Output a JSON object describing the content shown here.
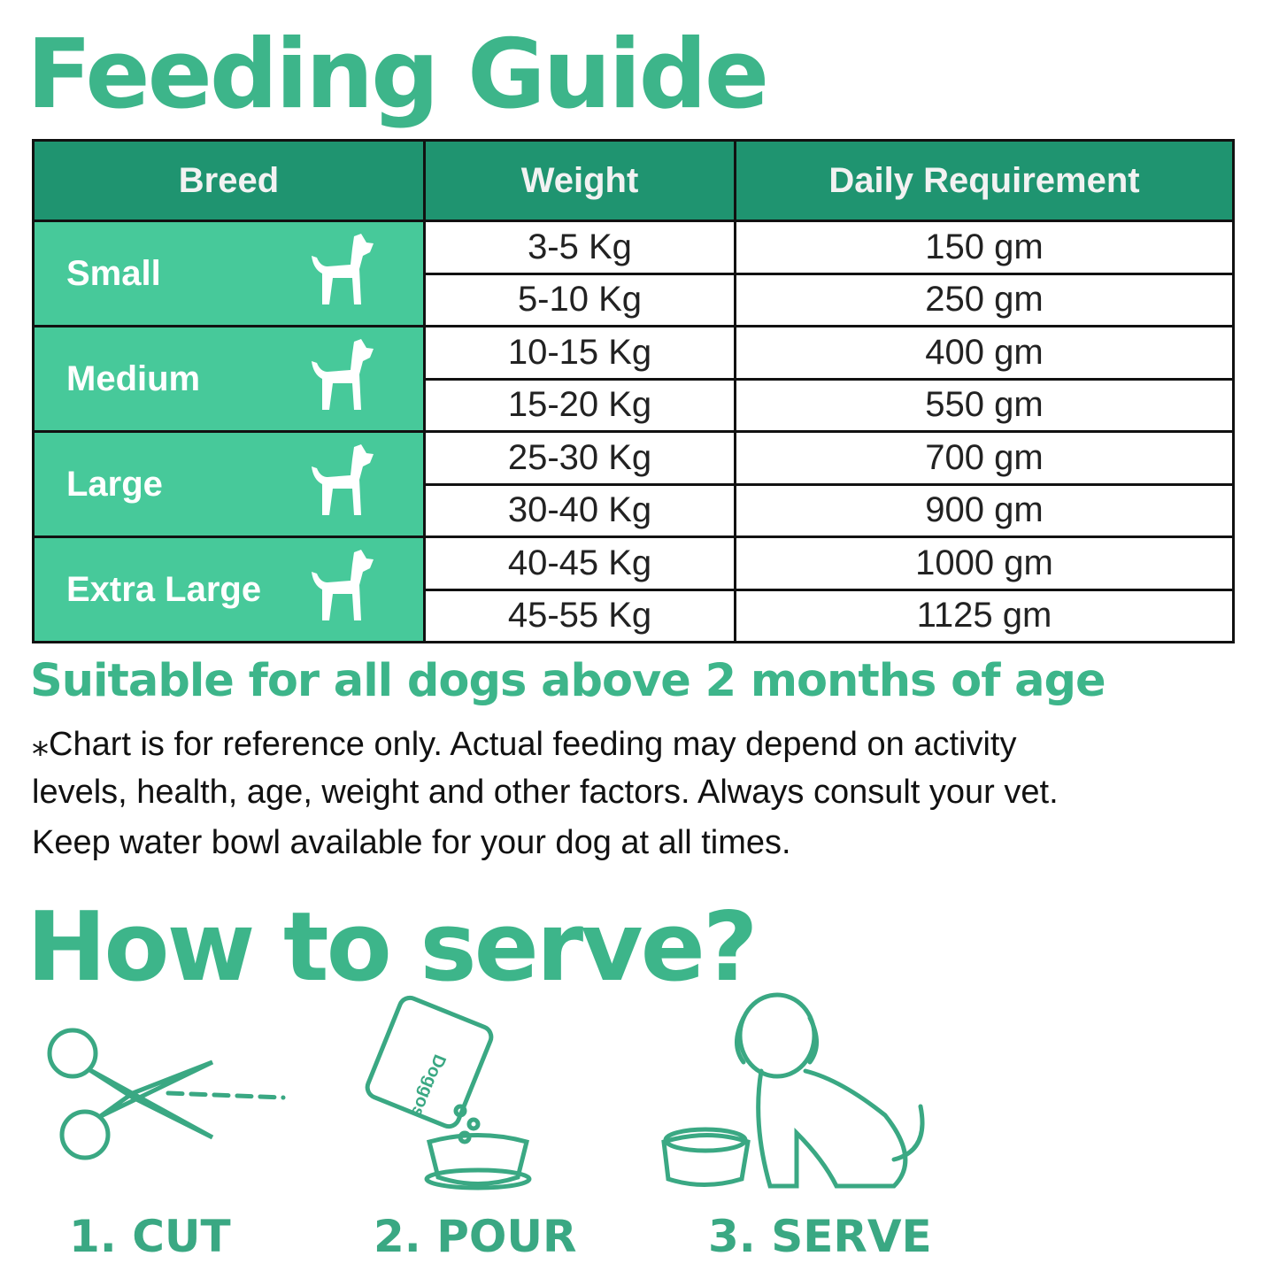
{
  "header": {
    "title": "Feeding Guide"
  },
  "table": {
    "columns": [
      "Breed",
      "Weight",
      "Daily Requirement"
    ],
    "groups": [
      {
        "breed": "Small",
        "rows": [
          [
            "3-5 Kg",
            "150 gm"
          ],
          [
            "5-10 Kg",
            "250 gm"
          ]
        ]
      },
      {
        "breed": "Medium",
        "rows": [
          [
            "10-15 Kg",
            "400 gm"
          ],
          [
            "15-20 Kg",
            "550 gm"
          ]
        ]
      },
      {
        "breed": "Large",
        "rows": [
          [
            "25-30 Kg",
            "700 gm"
          ],
          [
            "30-40 Kg",
            "900 gm"
          ]
        ]
      },
      {
        "breed": "Extra Large",
        "rows": [
          [
            "40-45 Kg",
            "1000 gm"
          ],
          [
            "45-55 Kg",
            "1125 gm"
          ]
        ]
      }
    ]
  },
  "subtitle": "Suitable for all dogs above 2 months of age",
  "note": [
    "⁎Chart is for reference only. Actual feeding may depend on activity",
    "levels, health, age, weight and other factors. Always consult your vet.",
    "Keep water bowl available for your dog at all times."
  ],
  "serve": {
    "title": "How to serve?",
    "bag_label": "Doggos",
    "steps": [
      "1. CUT",
      "2. POUR",
      "3. SERVE"
    ]
  }
}
